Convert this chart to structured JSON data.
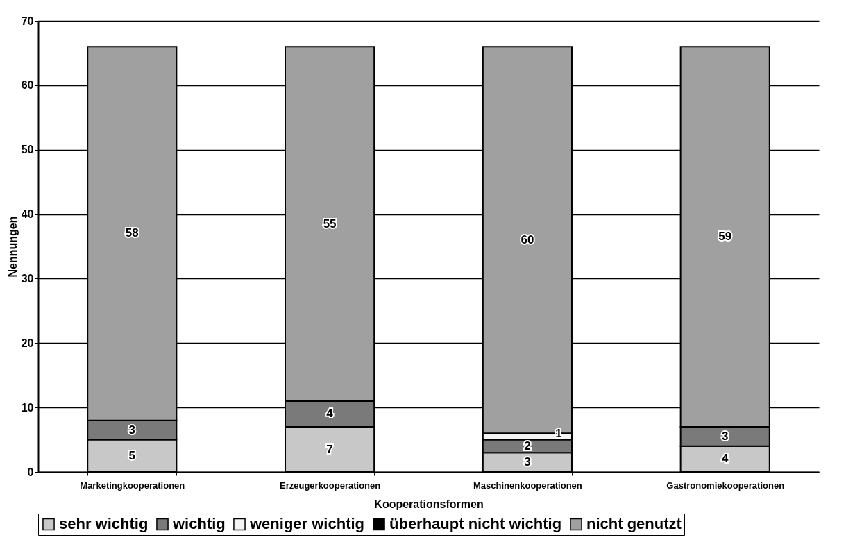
{
  "chart_data": {
    "type": "bar",
    "stacked": true,
    "xlabel": "Kooperationsformen",
    "ylabel": "Nennungen",
    "categories": [
      "Marketingkooperationen",
      "Erzeugerkooperationen",
      "Maschinenkooperationen",
      "Gastronomiekooperationen"
    ],
    "series": [
      {
        "name": "sehr wichtig",
        "color": "#c8c8c8",
        "values": [
          5,
          7,
          3,
          4
        ],
        "value_labels": [
          "5",
          "7",
          "3",
          "4"
        ]
      },
      {
        "name": "wichtig",
        "color": "#7a7a7a",
        "values": [
          3,
          4,
          2,
          3
        ],
        "value_labels": [
          "3",
          "4",
          "2",
          "3"
        ]
      },
      {
        "name": "weniger wichtig",
        "color": "#f4f4f4",
        "values": [
          0,
          0,
          1,
          0
        ],
        "value_labels": [
          null,
          null,
          "1",
          null
        ]
      },
      {
        "name": "überhaupt nicht wichtig",
        "color": "#000000",
        "values": [
          0,
          0,
          0,
          0
        ],
        "value_labels": [
          null,
          null,
          null,
          null
        ]
      },
      {
        "name": "nicht genutzt",
        "color": "#a0a0a0",
        "values": [
          58,
          55,
          60,
          59
        ],
        "value_labels": [
          "58",
          "55",
          "60",
          "59"
        ]
      }
    ],
    "ylim": [
      0,
      70
    ],
    "yticks": [
      0,
      10,
      20,
      30,
      40,
      50,
      60,
      70
    ],
    "grid": "y",
    "legend": "bottom"
  }
}
